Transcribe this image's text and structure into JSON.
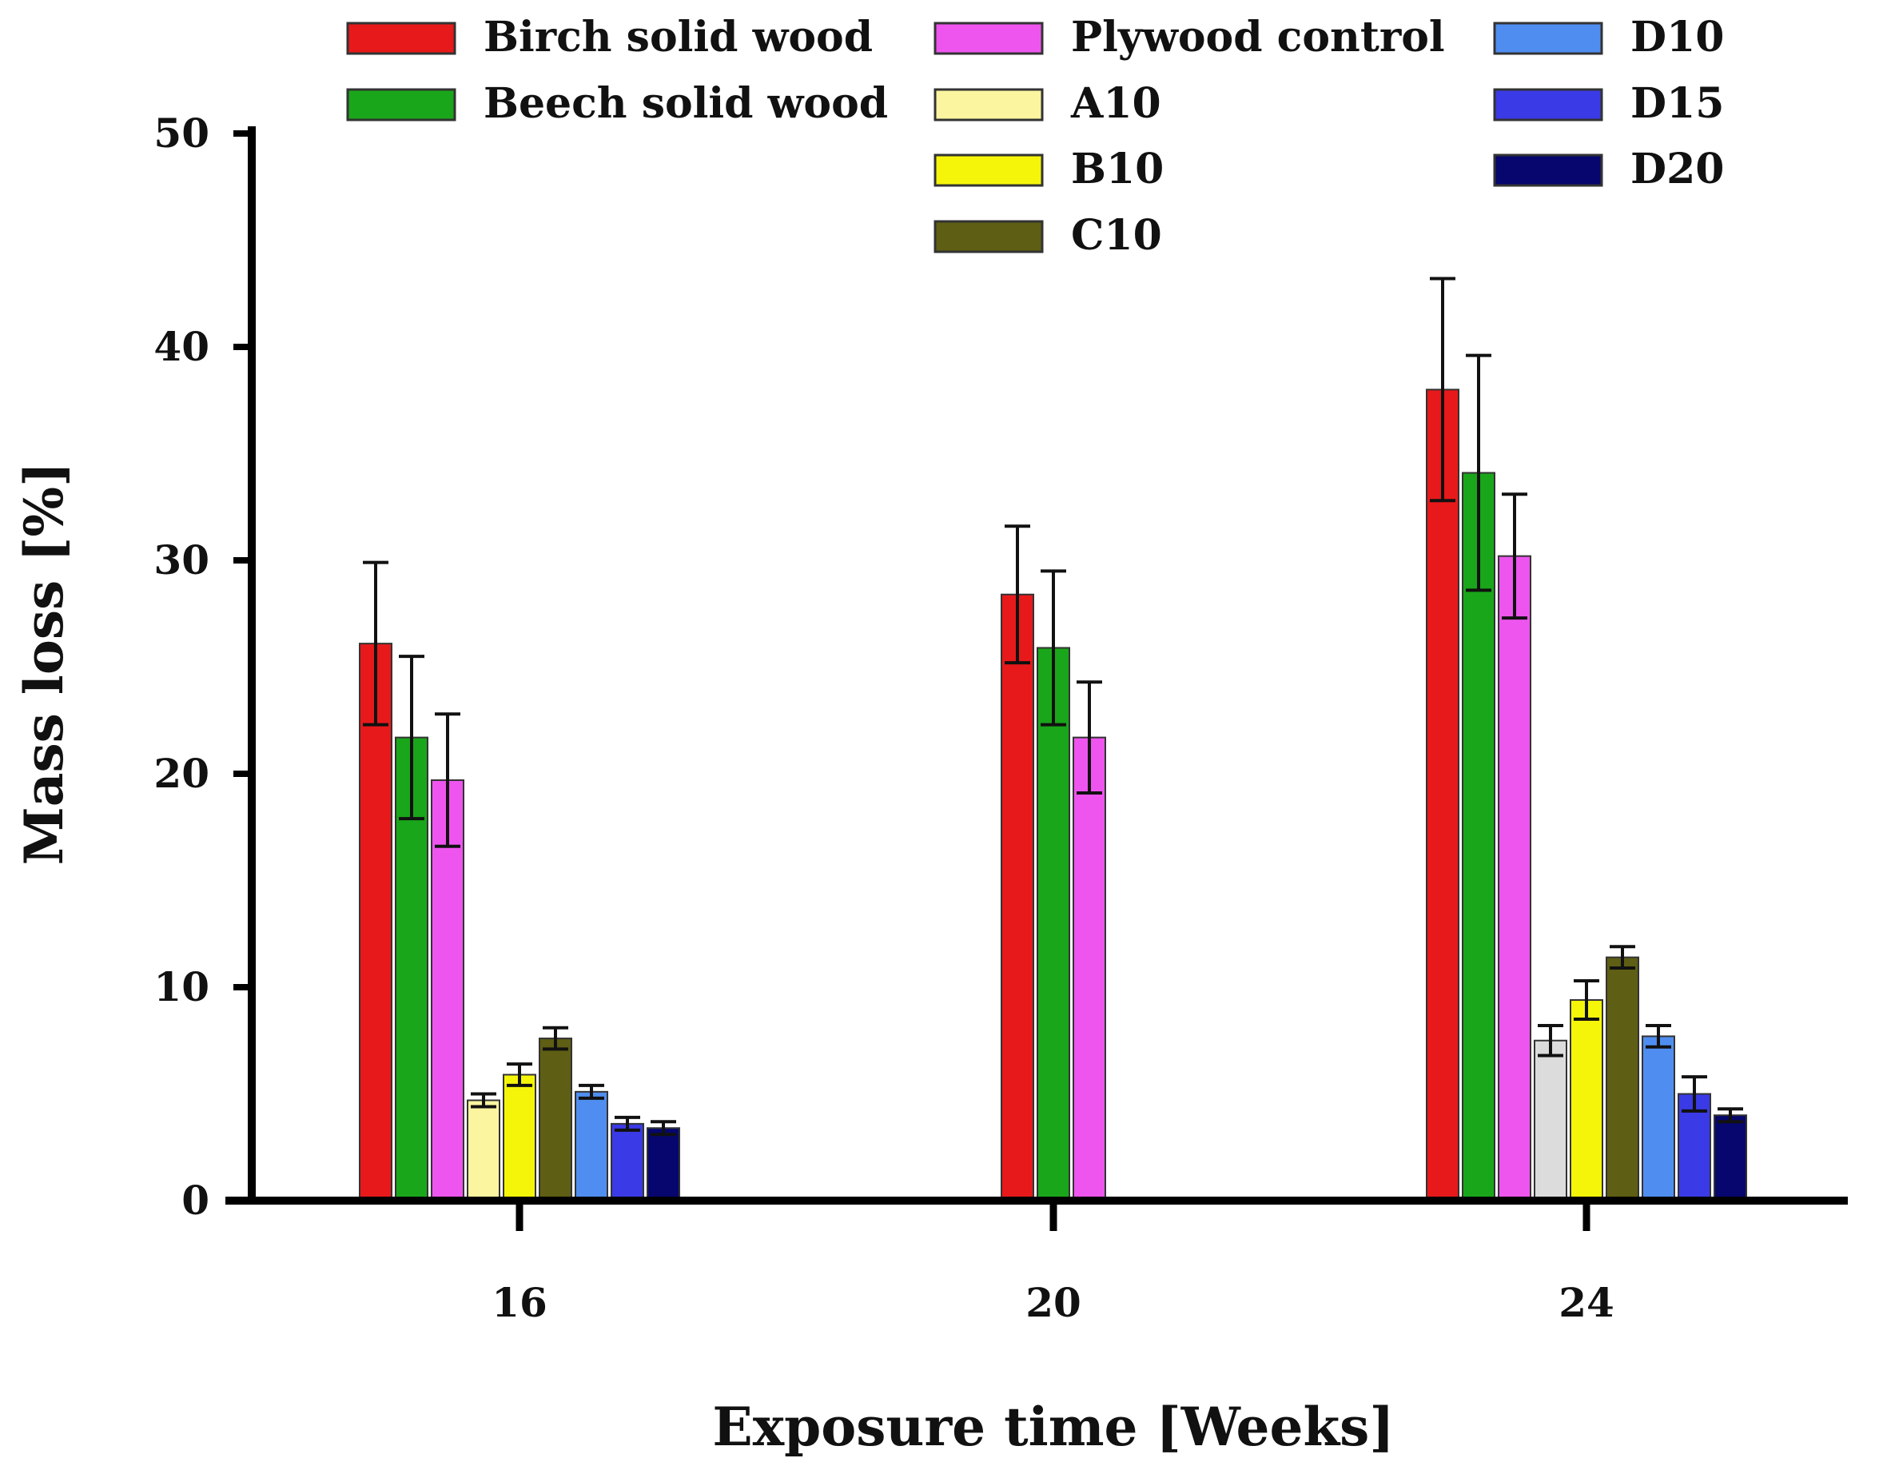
{
  "chart_data": {
    "type": "bar",
    "title": "",
    "xlabel": "Exposure time [Weeks]",
    "ylabel": "Mass loss [%]",
    "categories": [
      "16",
      "20",
      "24"
    ],
    "ylim": [
      0,
      50
    ],
    "yticks": [
      "0",
      "10",
      "20",
      "30",
      "40",
      "50"
    ],
    "grid": false,
    "legend_position": "top",
    "series": [
      {
        "name": "Birch solid wood",
        "color": "#e8191a",
        "values": [
          26.1,
          28.4,
          38.0
        ],
        "errors": [
          3.8,
          3.2,
          5.2
        ]
      },
      {
        "name": "Beech solid wood",
        "color": "#1aa61a",
        "values": [
          21.7,
          25.9,
          34.1
        ],
        "errors": [
          3.8,
          3.6,
          5.5
        ]
      },
      {
        "name": "Plywood control",
        "color": "#ee55ee",
        "values": [
          19.7,
          21.7,
          30.2
        ],
        "errors": [
          3.1,
          2.6,
          2.9
        ]
      },
      {
        "name": "A10",
        "color": "#fbf5a0",
        "values": [
          4.7,
          null,
          7.5
        ],
        "errors": [
          0.3,
          null,
          0.7
        ]
      },
      {
        "name": "B10",
        "color": "#f5f50a",
        "values": [
          5.9,
          null,
          9.4
        ],
        "errors": [
          0.5,
          null,
          0.9
        ]
      },
      {
        "name": "C10",
        "color": "#5e5e14",
        "values": [
          7.6,
          null,
          11.4
        ],
        "errors": [
          0.5,
          null,
          0.5
        ]
      },
      {
        "name": "D10",
        "color": "#4f8ef0",
        "values": [
          5.1,
          null,
          7.7
        ],
        "errors": [
          0.3,
          null,
          0.5
        ]
      },
      {
        "name": "D15",
        "color": "#3a3ae6",
        "values": [
          3.6,
          null,
          5.0
        ],
        "errors": [
          0.3,
          null,
          0.8
        ]
      },
      {
        "name": "D20",
        "color": "#06066e",
        "values": [
          3.4,
          null,
          4.0
        ],
        "errors": [
          0.3,
          null,
          0.3
        ]
      }
    ],
    "a10_bar_color_week24": "#dcdcdc"
  }
}
